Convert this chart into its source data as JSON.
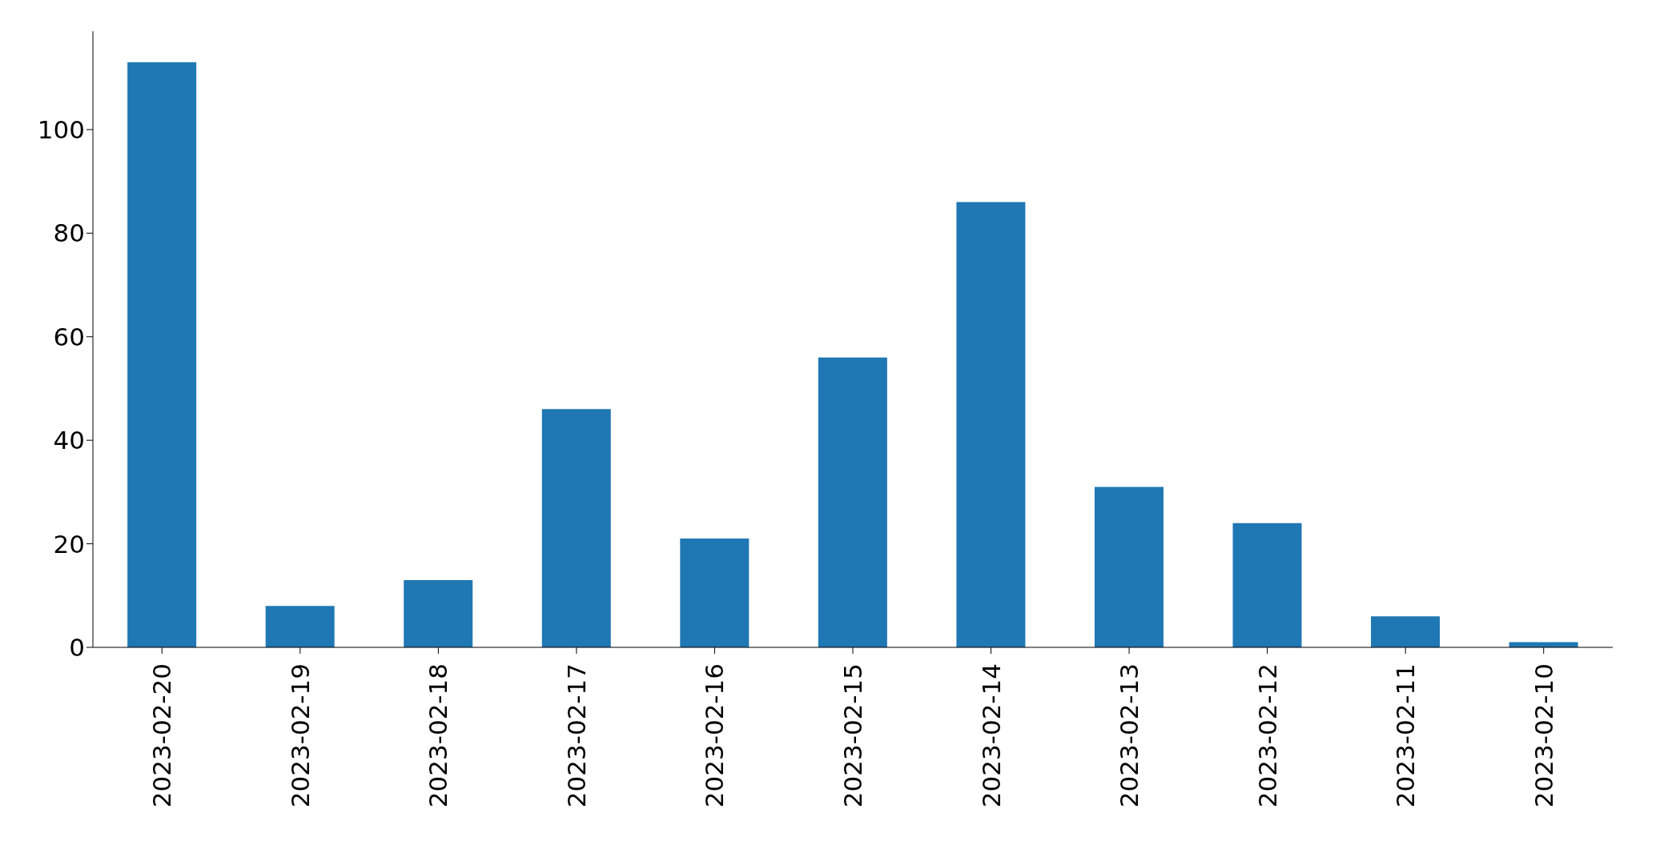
{
  "chart_data": {
    "type": "bar",
    "categories": [
      "2023-02-20",
      "2023-02-19",
      "2023-02-18",
      "2023-02-17",
      "2023-02-16",
      "2023-02-15",
      "2023-02-14",
      "2023-02-13",
      "2023-02-12",
      "2023-02-11",
      "2023-02-10"
    ],
    "values": [
      113,
      8,
      13,
      46,
      21,
      56,
      86,
      31,
      24,
      6,
      1
    ],
    "color": "#1f77b4",
    "ylim": [
      0,
      119
    ],
    "yticks": [
      0,
      20,
      40,
      60,
      80,
      100
    ],
    "grid": false,
    "legend": false
  }
}
